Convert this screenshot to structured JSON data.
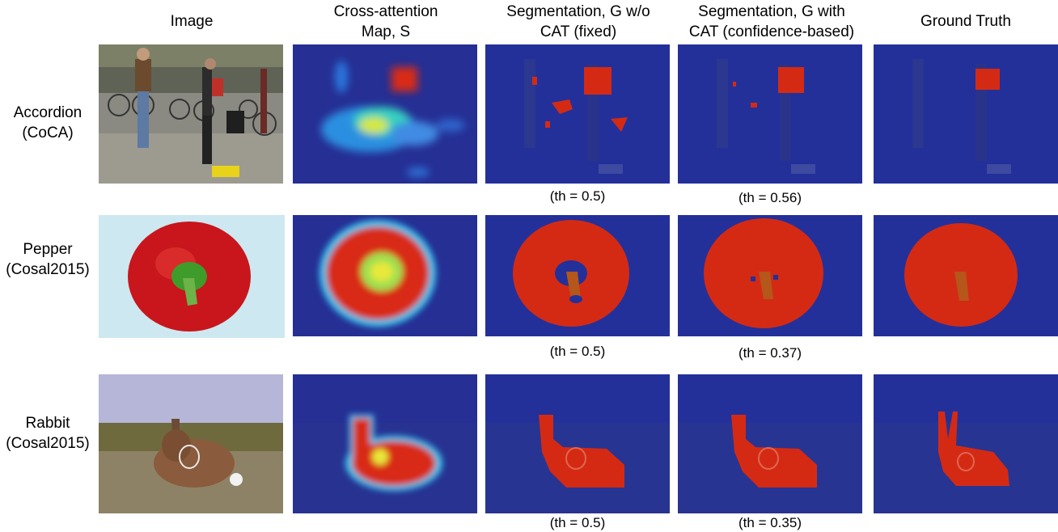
{
  "headers": [
    "Image",
    "Cross-attention\nMap, S",
    "Segmentation, G w/o\nCAT (fixed)",
    "Segmentation, G with\nCAT (confidence-based)",
    "Ground Truth"
  ],
  "rows": [
    {
      "label": "Accordion\n(CoCA)",
      "thresholds": [
        "(th = 0.5)",
        "(th = 0.56)"
      ]
    },
    {
      "label": "Pepper\n(Cosal2015)",
      "thresholds": [
        "(th = 0.5)",
        "(th = 0.37)"
      ]
    },
    {
      "label": "Rabbit\n(Cosal2015)",
      "thresholds": [
        "(th = 0.5)",
        "(th = 0.35)"
      ]
    }
  ],
  "colors": {
    "overlay_blue": "#23309a",
    "segment_red": "#d42a14"
  }
}
